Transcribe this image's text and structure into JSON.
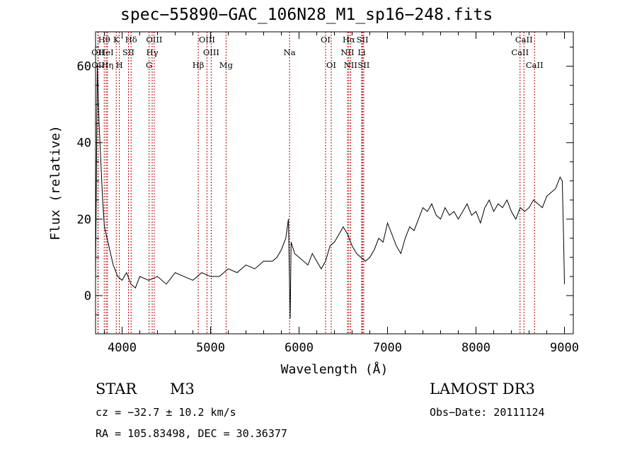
{
  "chart_data": {
    "type": "line",
    "title": "spec−55890−GAC_106N28_M1_sp16−248.fits",
    "xlabel": "Wavelength (Å)",
    "ylabel": "Flux (relative)",
    "xlim": [
      3700,
      9100
    ],
    "ylim": [
      -10,
      69
    ],
    "x_ticks": [
      4000,
      5000,
      6000,
      7000,
      8000,
      9000
    ],
    "y_ticks": [
      0,
      20,
      40,
      60
    ],
    "x": [
      3700,
      3720,
      3740,
      3760,
      3780,
      3800,
      3830,
      3860,
      3900,
      3950,
      4000,
      4050,
      4100,
      4150,
      4200,
      4300,
      4400,
      4500,
      4600,
      4700,
      4800,
      4900,
      5000,
      5100,
      5200,
      5300,
      5400,
      5500,
      5600,
      5700,
      5750,
      5800,
      5850,
      5880,
      5895,
      5900,
      5910,
      5950,
      6000,
      6100,
      6150,
      6200,
      6250,
      6300,
      6350,
      6400,
      6450,
      6500,
      6550,
      6600,
      6650,
      6700,
      6750,
      6800,
      6850,
      6900,
      6950,
      7000,
      7050,
      7100,
      7150,
      7200,
      7250,
      7300,
      7350,
      7400,
      7450,
      7500,
      7550,
      7600,
      7650,
      7700,
      7750,
      7800,
      7850,
      7900,
      7950,
      8000,
      8050,
      8100,
      8150,
      8200,
      8250,
      8300,
      8350,
      8400,
      8450,
      8500,
      8550,
      8600,
      8650,
      8700,
      8750,
      8800,
      8850,
      8900,
      8950,
      8975,
      8990,
      9000
    ],
    "y": [
      5,
      60,
      45,
      35,
      25,
      18,
      15,
      12,
      8,
      5,
      4,
      6,
      3,
      2,
      5,
      4,
      5,
      3,
      6,
      5,
      4,
      6,
      5,
      5,
      7,
      6,
      8,
      7,
      9,
      9,
      10,
      12,
      15,
      20,
      0,
      -6,
      14,
      11,
      10,
      8,
      11,
      9,
      7,
      9,
      13,
      14,
      16,
      18,
      16,
      13,
      11,
      10,
      9,
      10,
      12,
      15,
      14,
      19,
      16,
      13,
      11,
      15,
      18,
      17,
      20,
      23,
      22,
      24,
      21,
      20,
      23,
      21,
      22,
      20,
      22,
      24,
      21,
      22,
      19,
      23,
      25,
      22,
      24,
      23,
      25,
      22,
      20,
      23,
      22,
      23,
      25,
      24,
      23,
      26,
      27,
      28,
      31,
      30,
      15,
      3
    ],
    "lines": [
      {
        "label": "Hθ",
        "wave": 3798,
        "row": 0
      },
      {
        "label": "OII",
        "wave": 3727,
        "row": 1
      },
      {
        "label": "OII",
        "wave": 3729,
        "row": 2
      },
      {
        "label": "HeI",
        "wave": 3820,
        "row": 1
      },
      {
        "label": "Hη",
        "wave": 3835,
        "row": 2
      },
      {
        "label": "K",
        "wave": 3934,
        "row": 0
      },
      {
        "label": "H",
        "wave": 3969,
        "row": 2
      },
      {
        "label": "SII",
        "wave": 4072,
        "row": 1
      },
      {
        "label": "Hδ",
        "wave": 4102,
        "row": 0
      },
      {
        "label": "OIII",
        "wave": 4363,
        "row": 0
      },
      {
        "label": "Hγ",
        "wave": 4340,
        "row": 1
      },
      {
        "label": "G",
        "wave": 4305,
        "row": 2
      },
      {
        "label": "Hβ",
        "wave": 4861,
        "row": 2
      },
      {
        "label": "OIII",
        "wave": 4959,
        "row": 0
      },
      {
        "label": "OIII",
        "wave": 5007,
        "row": 1
      },
      {
        "label": "Mg",
        "wave": 5175,
        "row": 2
      },
      {
        "label": "Na",
        "wave": 5893,
        "row": 1
      },
      {
        "label": "OI",
        "wave": 6300,
        "row": 0
      },
      {
        "label": "OI",
        "wave": 6364,
        "row": 2
      },
      {
        "label": "Hα",
        "wave": 6563,
        "row": 0
      },
      {
        "label": "NII",
        "wave": 6548,
        "row": 1
      },
      {
        "label": "NII",
        "wave": 6583,
        "row": 2
      },
      {
        "label": "SII",
        "wave": 6717,
        "row": 0
      },
      {
        "label": "Li",
        "wave": 6708,
        "row": 1
      },
      {
        "label": "SII",
        "wave": 6731,
        "row": 2
      },
      {
        "label": "CaII",
        "wave": 8542,
        "row": 0
      },
      {
        "label": "CaII",
        "wave": 8498,
        "row": 1
      },
      {
        "label": "CaII",
        "wave": 8662,
        "row": 2
      }
    ]
  },
  "info": {
    "object_class": "STAR",
    "subclass": "M3",
    "survey": "LAMOST DR3",
    "redshift": "cz = −32.7 ± 10.2 km/s",
    "obs_date": "Obs−Date: 20111124",
    "coords": "RA = 105.83498, DEC =  30.36377"
  },
  "colors": {
    "spectrum": "#000000",
    "line_marker": "#b00000",
    "background": "#ffffff"
  }
}
